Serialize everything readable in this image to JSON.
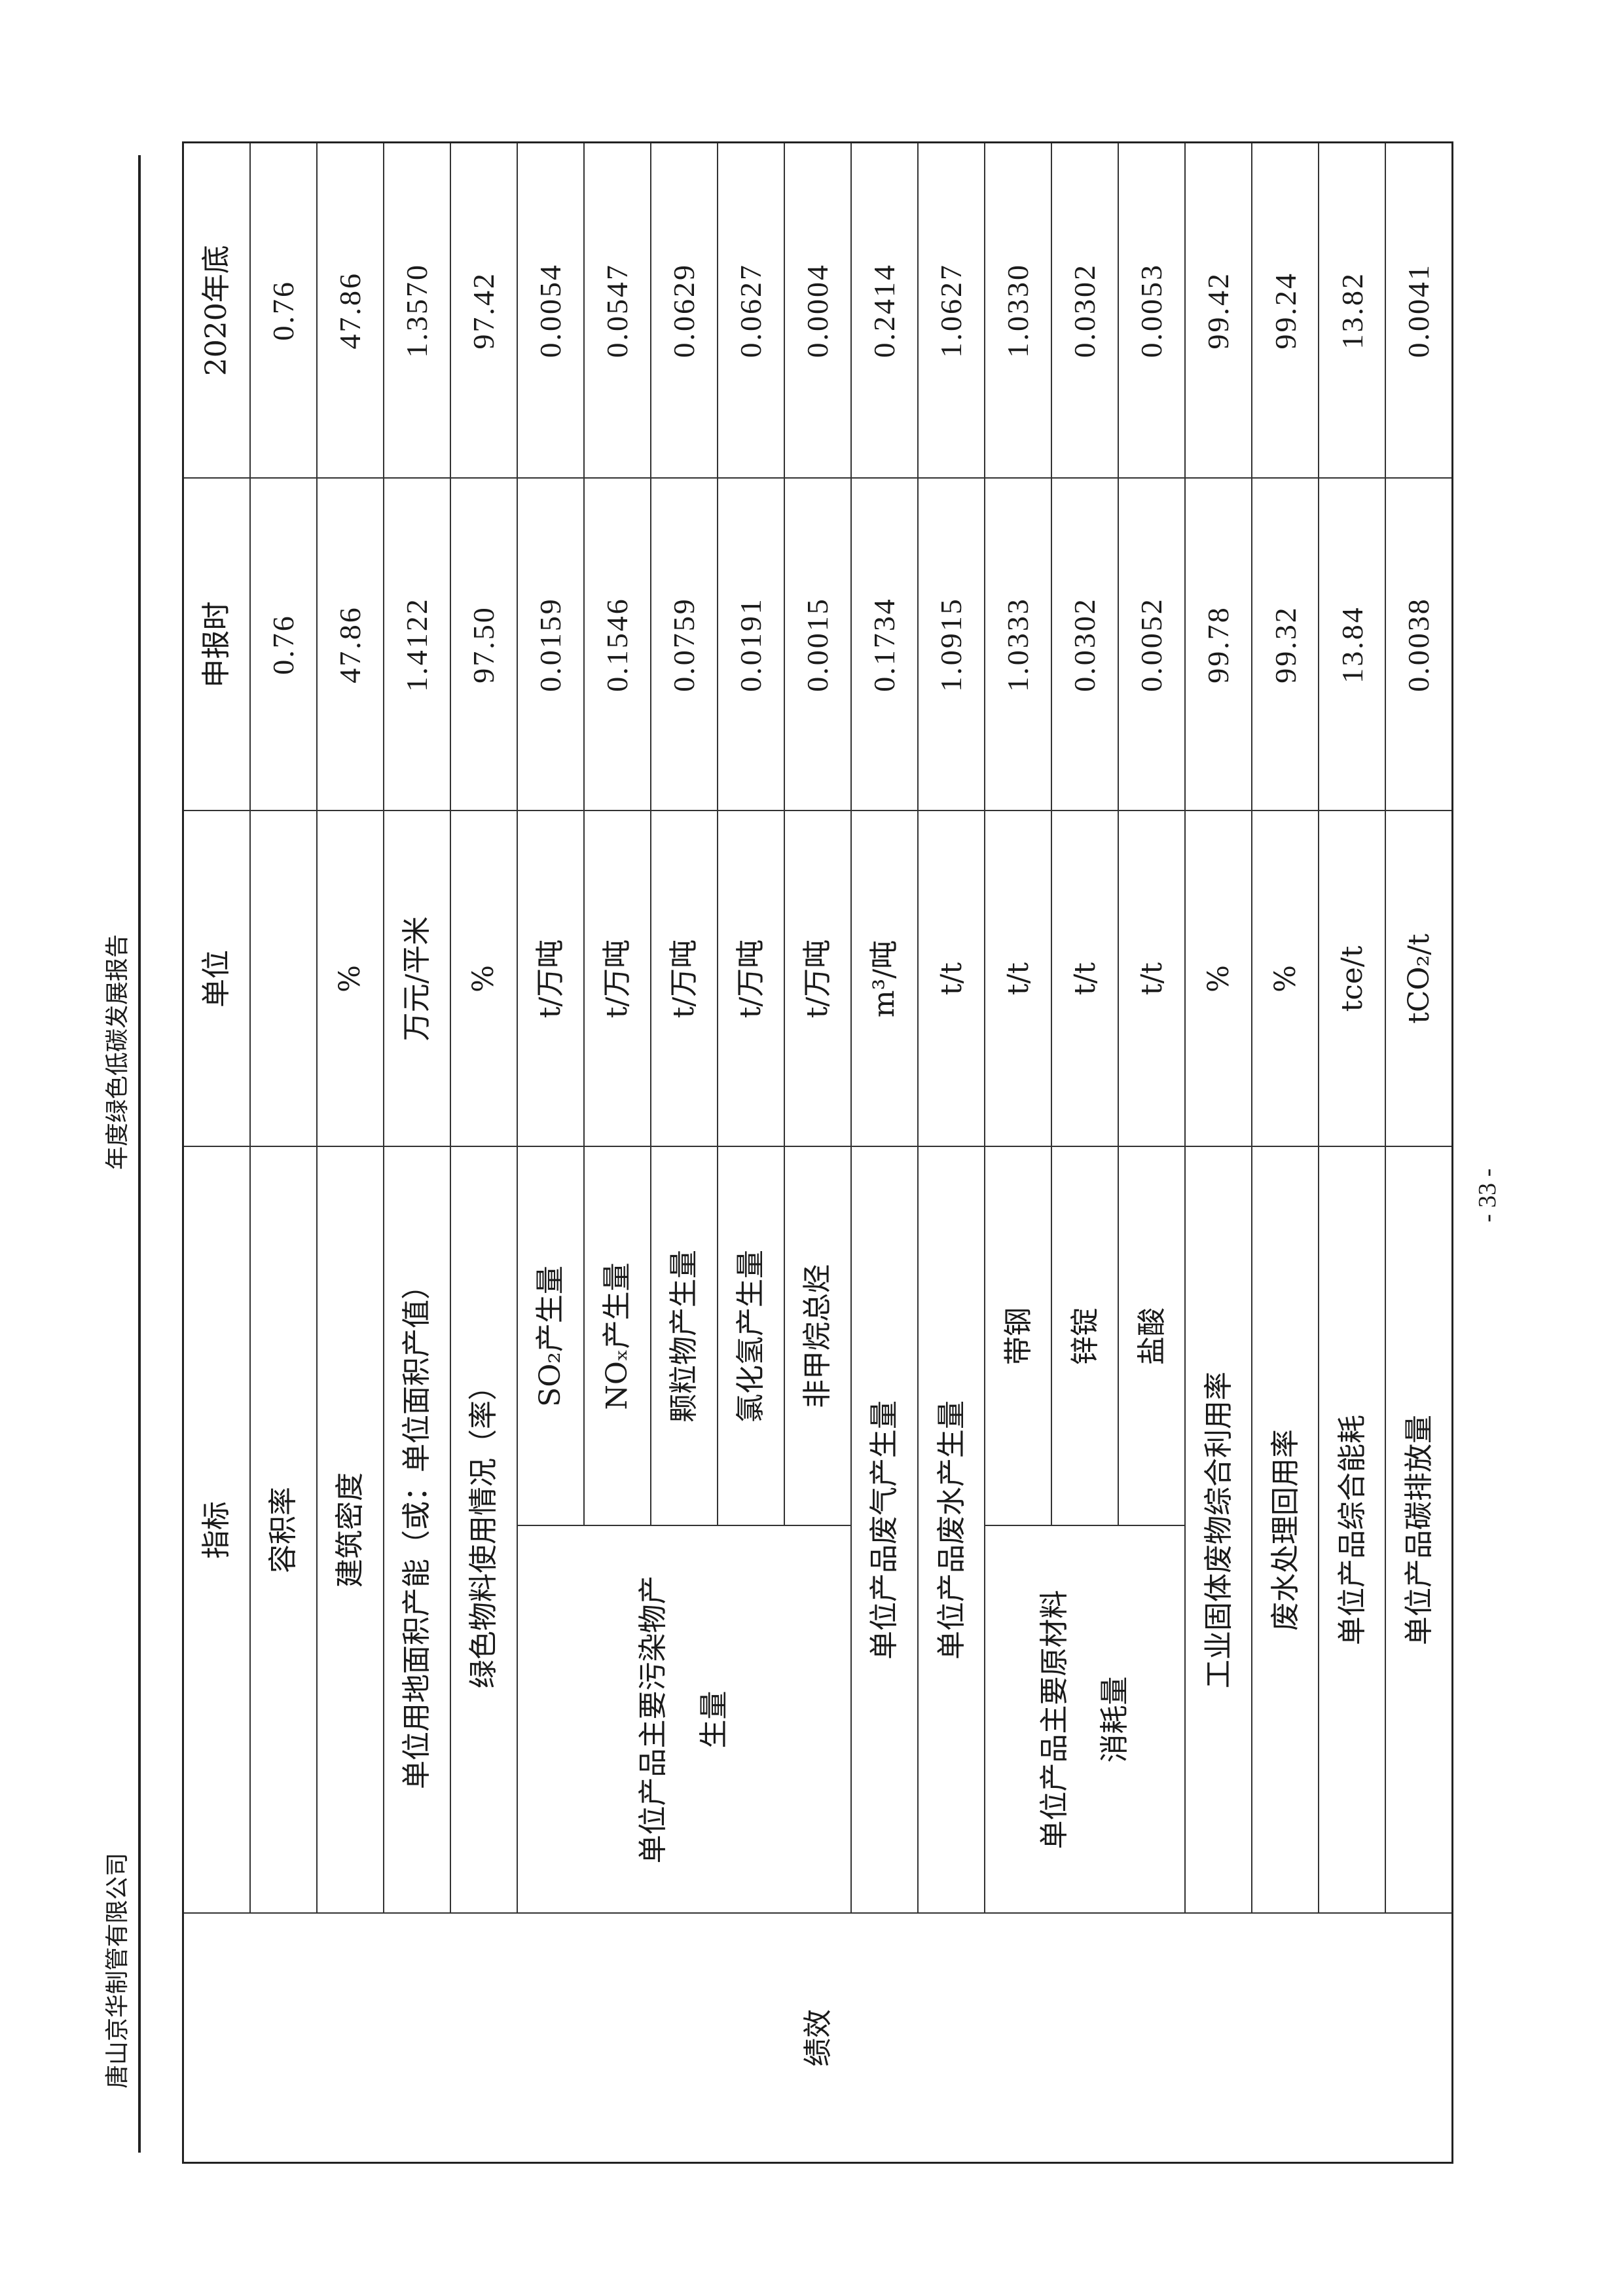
{
  "running_header": {
    "company": "唐山京华制管有限公司",
    "report_title": "年度绿色低碳发展报告"
  },
  "page_number": "- 33 -",
  "table": {
    "section": "绩效",
    "headers": {
      "indicator": "指标",
      "unit": "单位",
      "declared": "申报时",
      "end_2020": "2020年底"
    },
    "rows": [
      {
        "indicator": "容积率",
        "unit": "",
        "declared": "0.76",
        "end_2020": "0.76"
      },
      {
        "indicator": "建筑密度",
        "unit": "%",
        "declared": "47.86",
        "end_2020": "47.86"
      },
      {
        "indicator": "单位用地面积产能（或：单位面积产值）",
        "unit": "万元/平米",
        "declared": "1.4122",
        "end_2020": "1.3570"
      },
      {
        "indicator": "绿色物料使用情况（率）",
        "unit": "%",
        "declared": "97.50",
        "end_2020": "97.42"
      }
    ],
    "pollutant_group": {
      "label": "单位产品主要污染物产\n生量",
      "items": [
        {
          "indicator": "SO₂产生量",
          "unit": "t/万吨",
          "declared": "0.0159",
          "end_2020": "0.0054"
        },
        {
          "indicator": "NOₓ产生量",
          "unit": "t/万吨",
          "declared": "0.1546",
          "end_2020": "0.0547"
        },
        {
          "indicator": "颗粒物产生量",
          "unit": "t/万吨",
          "declared": "0.0759",
          "end_2020": "0.0629"
        },
        {
          "indicator": "氯化氢产生量",
          "unit": "t/万吨",
          "declared": "0.0191",
          "end_2020": "0.0627"
        },
        {
          "indicator": "非甲烷总烃",
          "unit": "t/万吨",
          "declared": "0.0015",
          "end_2020": "0.0004"
        }
      ]
    },
    "rows_mid": [
      {
        "indicator": "单位产品废气产生量",
        "unit": "m³/吨",
        "declared": "0.1734",
        "end_2020": "0.2414"
      },
      {
        "indicator": "单位产品废水产生量",
        "unit": "t/t",
        "declared": "1.0915",
        "end_2020": "1.0627"
      }
    ],
    "material_group": {
      "label": "单位产品主要原材料\n消耗量",
      "items": [
        {
          "indicator": "带钢",
          "unit": "t/t",
          "declared": "1.0333",
          "end_2020": "1.0330"
        },
        {
          "indicator": "锌锭",
          "unit": "t/t",
          "declared": "0.0302",
          "end_2020": "0.0302"
        },
        {
          "indicator": "盐酸",
          "unit": "t/t",
          "declared": "0.0052",
          "end_2020": "0.0053"
        }
      ]
    },
    "rows_end": [
      {
        "indicator": "工业固体废物综合利用率",
        "unit": "%",
        "declared": "99.78",
        "end_2020": "99.42"
      },
      {
        "indicator": "废水处理回用率",
        "unit": "%",
        "declared": "99.32",
        "end_2020": "99.24"
      },
      {
        "indicator": "单位产品综合能耗",
        "unit": "tce/t",
        "declared": "13.84",
        "end_2020": "13.82"
      },
      {
        "indicator": "单位产品碳排放量",
        "unit": "tCO₂/t",
        "declared": "0.0038",
        "end_2020": "0.0041"
      }
    ]
  }
}
